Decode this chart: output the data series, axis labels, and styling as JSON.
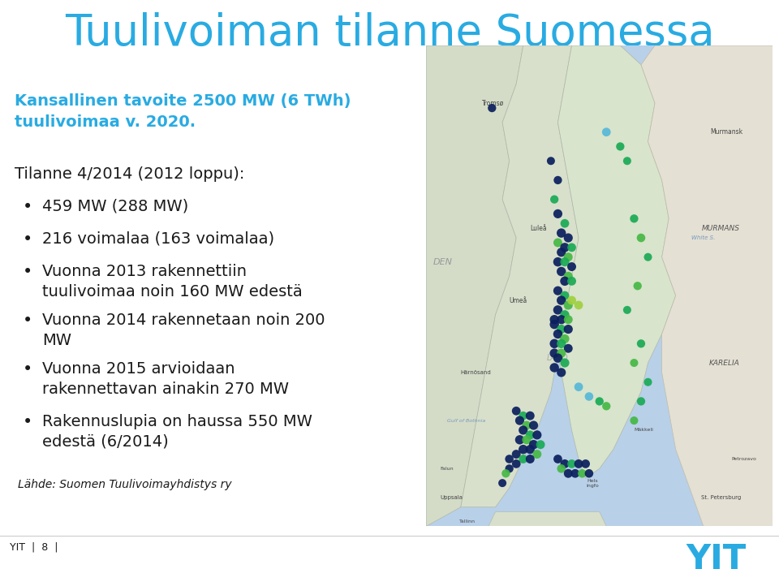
{
  "title": "Tuulivoiman tilanne Suomessa",
  "title_color": "#29ABE2",
  "subtitle": "Kansallinen tavoite 2500 MW (6 TWh)\ntuulivoimaa v. 2020.",
  "subtitle_color": "#29ABE2",
  "body_intro": "Tilanne 4/2014 (2012 loppu):",
  "bullets": [
    "459 MW (288 MW)",
    "216 voimalaa (163 voimalaa)",
    "Vuonna 2013 rakennettiin\ntuulivoimaa noin 160 MW edestä",
    "Vuonna 2014 rakennetaan noin 200\nMW",
    "Vuonna 2015 arvioidaan\nrakennettavan ainakin 270 MW",
    "Rakennuslupia on haussa 550 MW\nedestä (6/2014)"
  ],
  "footer_left": "Lähde: Suomen Tuulivoimayhdistys ry",
  "page_label": "YIT  |  8  |",
  "bg_color": "#ffffff",
  "text_color": "#1a1a1a",
  "bullet_color": "#1a1a1a",
  "title_fontsize": 38,
  "subtitle_fontsize": 14,
  "body_fontsize": 14,
  "footer_fontsize": 10,
  "page_fontsize": 9,
  "yit_logo_color": "#29ABE2",
  "map_sea_color": "#b8d0e8",
  "map_land_main": "#d8e8d0",
  "map_land_russia": "#e0e0d8",
  "map_land_norway": "#d0d8c8",
  "navy": "#0a1f5c",
  "green1": "#1aaa55",
  "green2": "#45b844",
  "light_blue": "#56b8d8",
  "lime": "#a0d040"
}
